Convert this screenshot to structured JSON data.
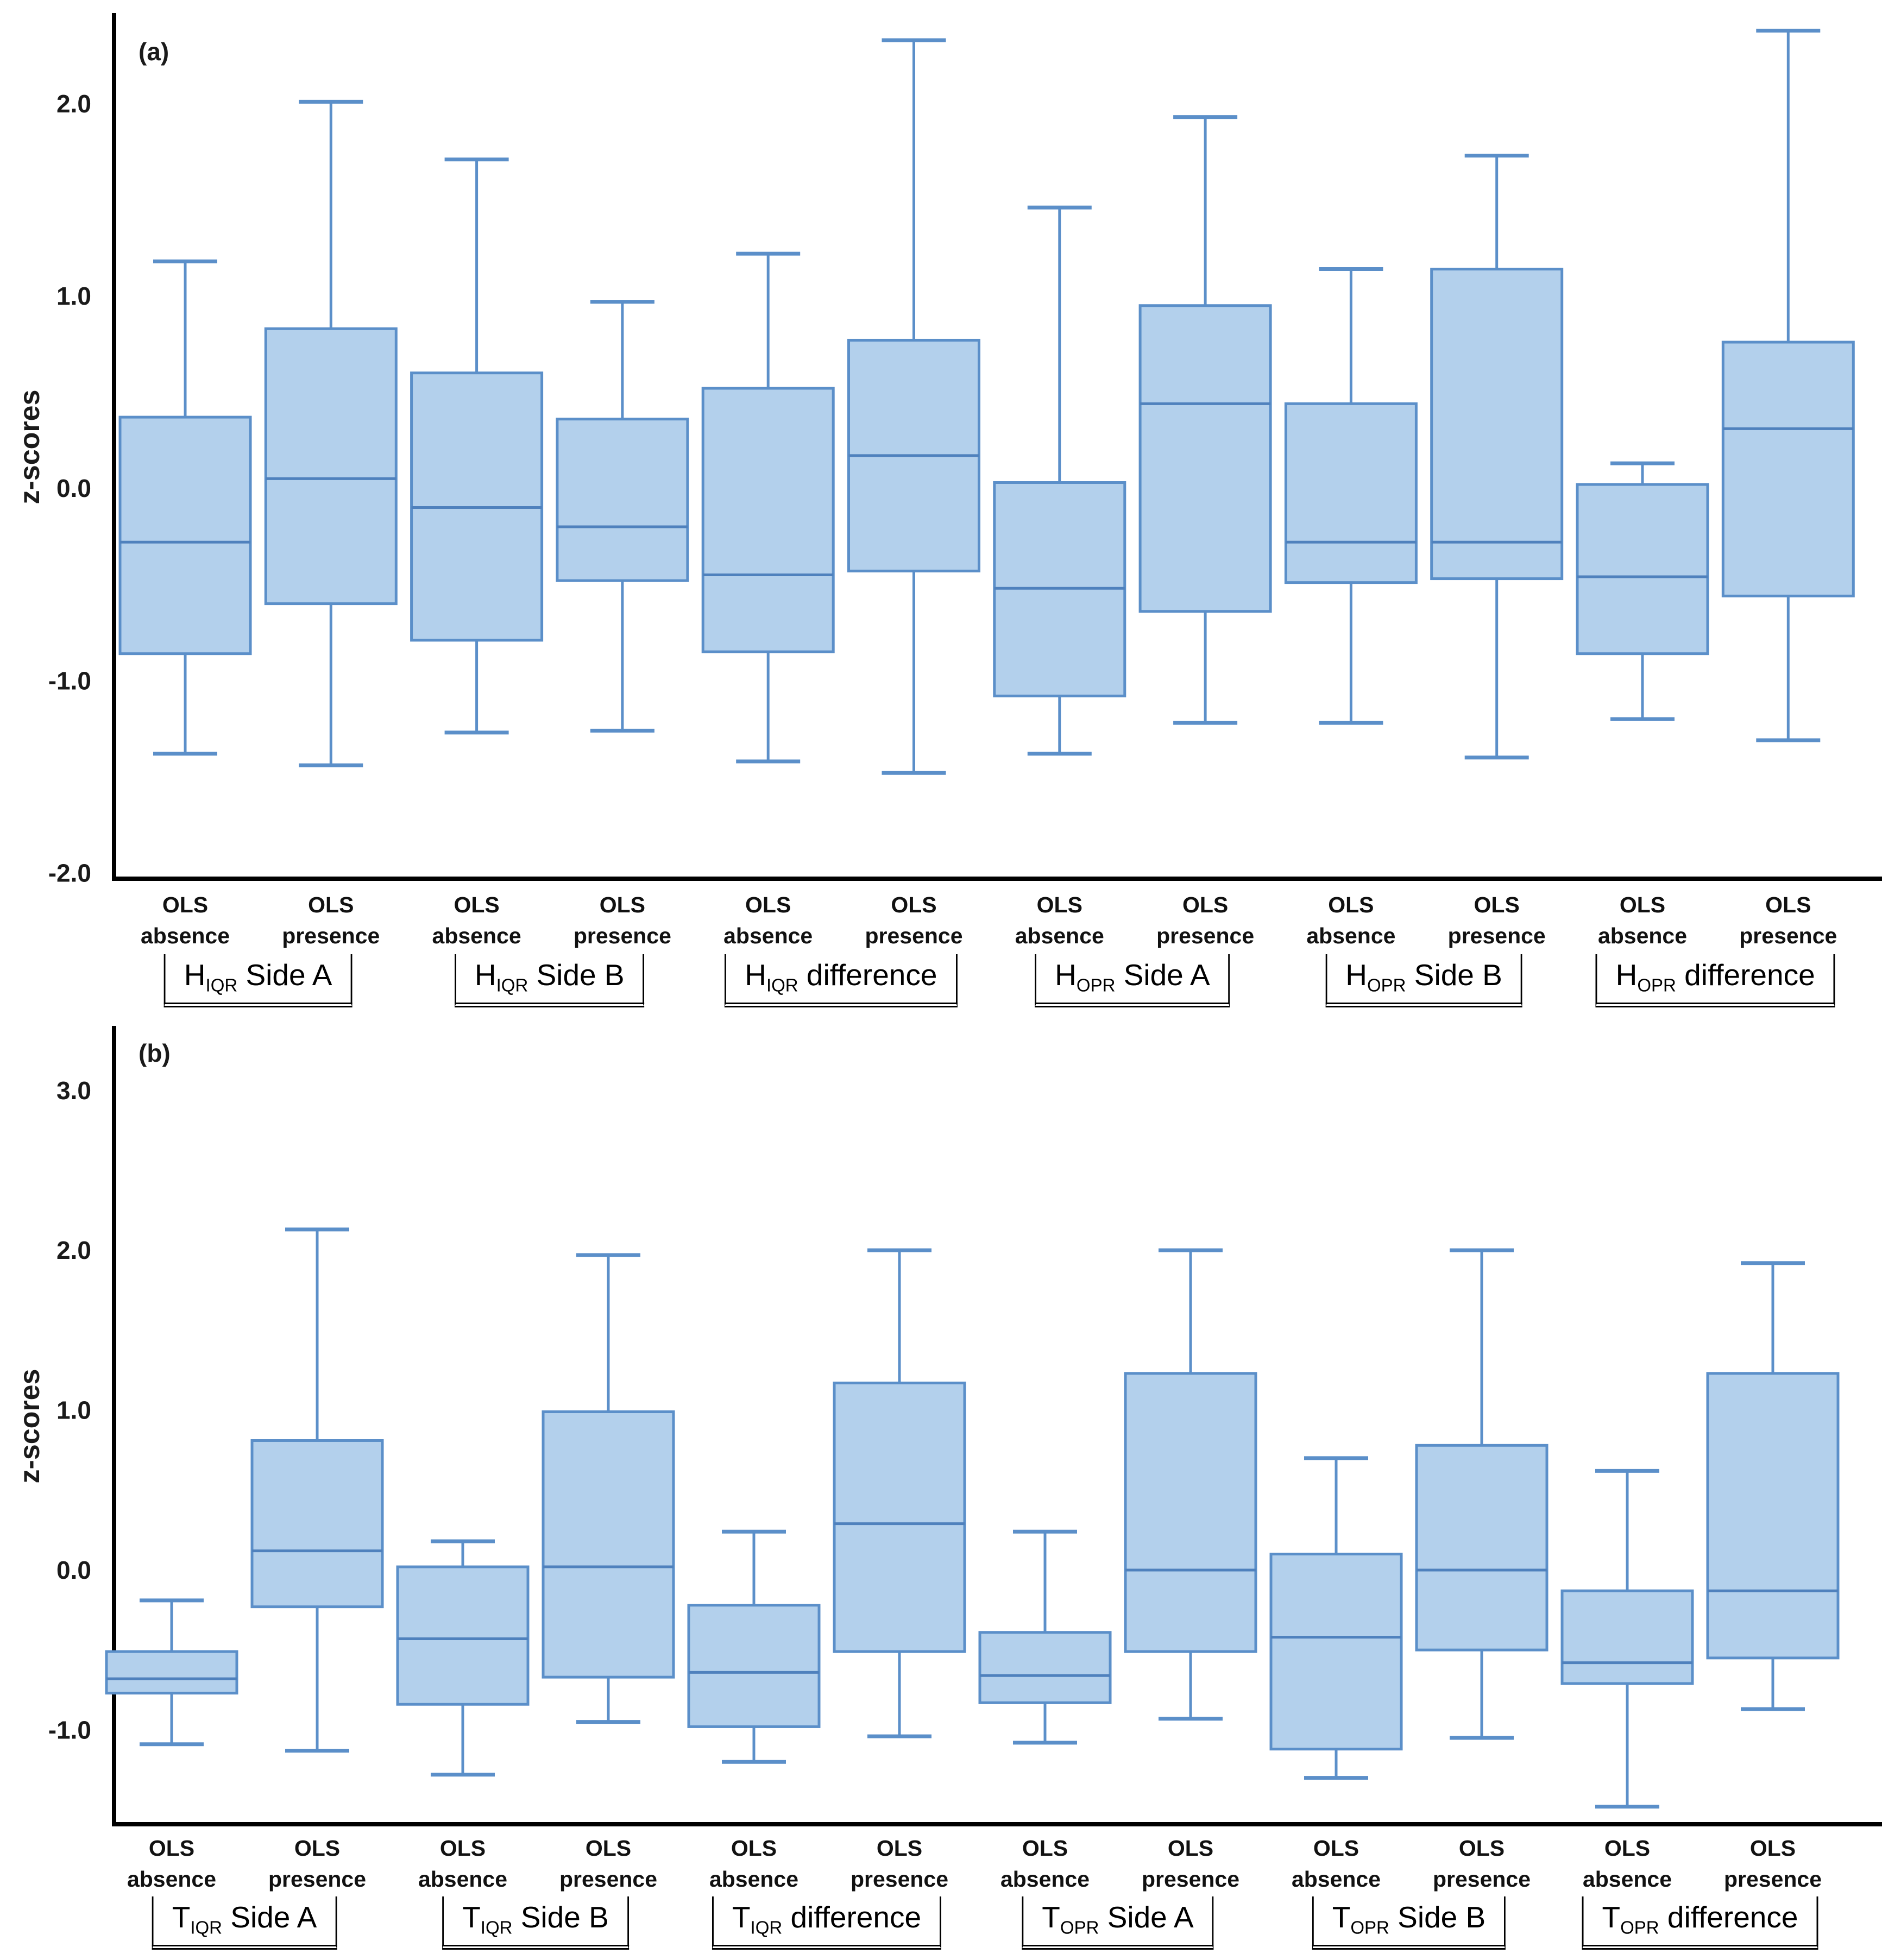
{
  "figure": {
    "background": "#ffffff",
    "box_fill": "#b3d0ec",
    "box_stroke": "#5b8fc9",
    "median_stroke": "#4f81bd",
    "whisker_stroke": "#5b8fc9",
    "axis_color": "#000000",
    "text_color": "#1a1a1a"
  },
  "chart_data": [
    {
      "type": "box",
      "panel_label": "(a)",
      "ylabel": "z-scores",
      "grid": false,
      "legend": null,
      "yticks": [
        {
          "label": "2.0",
          "value": 2.0
        },
        {
          "label": "1.0",
          "value": 1.0
        },
        {
          "label": "0.0",
          "value": 0.0
        },
        {
          "label": "-1.0",
          "value": -1.0
        },
        {
          "label": "-2.0",
          "value": -2.0
        }
      ],
      "ylim": [
        -2.03,
        2.46
      ],
      "groups": [
        {
          "prefix": "H",
          "sub": "IQR",
          "rest": "Side A",
          "name": "H_IQR Side A"
        },
        {
          "prefix": "H",
          "sub": "IQR",
          "rest": "Side B",
          "name": "H_IQR Side B"
        },
        {
          "prefix": "H",
          "sub": "IQR",
          "rest": "difference",
          "name": "H_IQR difference"
        },
        {
          "prefix": "H",
          "sub": "OPR",
          "rest": "Side A",
          "name": "H_OPR Side A"
        },
        {
          "prefix": "H",
          "sub": "OPR",
          "rest": "Side B",
          "name": "H_OPR Side B"
        },
        {
          "prefix": "H",
          "sub": "OPR",
          "rest": "difference",
          "name": "H_OPR difference"
        }
      ],
      "condition_labels": [
        [
          "OLS",
          "absence"
        ],
        [
          "OLS",
          "presence"
        ]
      ],
      "boxes": [
        {
          "group": "H_IQR Side A",
          "condition": "OLS absence",
          "whisker_low": -1.38,
          "q1": -0.86,
          "median": -0.28,
          "q3": 0.37,
          "whisker_high": 1.18
        },
        {
          "group": "H_IQR Side A",
          "condition": "OLS presence",
          "whisker_low": -1.44,
          "q1": -0.6,
          "median": 0.05,
          "q3": 0.83,
          "whisker_high": 2.01
        },
        {
          "group": "H_IQR Side B",
          "condition": "OLS absence",
          "whisker_low": -1.27,
          "q1": -0.79,
          "median": -0.1,
          "q3": 0.6,
          "whisker_high": 1.71
        },
        {
          "group": "H_IQR Side B",
          "condition": "OLS presence",
          "whisker_low": -1.26,
          "q1": -0.48,
          "median": -0.2,
          "q3": 0.36,
          "whisker_high": 0.97
        },
        {
          "group": "H_IQR difference",
          "condition": "OLS absence",
          "whisker_low": -1.42,
          "q1": -0.85,
          "median": -0.45,
          "q3": 0.52,
          "whisker_high": 1.22
        },
        {
          "group": "H_IQR difference",
          "condition": "OLS presence",
          "whisker_low": -1.48,
          "q1": -0.43,
          "median": 0.17,
          "q3": 0.77,
          "whisker_high": 2.33
        },
        {
          "group": "H_OPR Side A",
          "condition": "OLS absence",
          "whisker_low": -1.38,
          "q1": -1.08,
          "median": -0.52,
          "q3": 0.03,
          "whisker_high": 1.46
        },
        {
          "group": "H_OPR Side A",
          "condition": "OLS presence",
          "whisker_low": -1.22,
          "q1": -0.64,
          "median": 0.44,
          "q3": 0.95,
          "whisker_high": 1.93
        },
        {
          "group": "H_OPR Side B",
          "condition": "OLS absence",
          "whisker_low": -1.22,
          "q1": -0.49,
          "median": -0.28,
          "q3": 0.44,
          "whisker_high": 1.14
        },
        {
          "group": "H_OPR Side B",
          "condition": "OLS presence",
          "whisker_low": -1.4,
          "q1": -0.47,
          "median": -0.28,
          "q3": 1.14,
          "whisker_high": 1.73
        },
        {
          "group": "H_OPR difference",
          "condition": "OLS absence",
          "whisker_low": -1.2,
          "q1": -0.86,
          "median": -0.46,
          "q3": 0.02,
          "whisker_high": 0.13
        },
        {
          "group": "H_OPR difference",
          "condition": "OLS presence",
          "whisker_low": -1.31,
          "q1": -0.56,
          "median": 0.31,
          "q3": 0.76,
          "whisker_high": 2.38
        }
      ]
    },
    {
      "type": "box",
      "panel_label": "(b)",
      "ylabel": "z-scores",
      "grid": false,
      "legend": null,
      "yticks": [
        {
          "label": "3.0",
          "value": 3.0
        },
        {
          "label": "2.0",
          "value": 2.0
        },
        {
          "label": "1.0",
          "value": 1.0
        },
        {
          "label": "0.0",
          "value": 0.0
        },
        {
          "label": "-1.0",
          "value": -1.0
        }
      ],
      "ylim": [
        -1.59,
        3.39
      ],
      "groups": [
        {
          "prefix": "T",
          "sub": "IQR",
          "rest": "Side A",
          "name": "T_IQR Side A"
        },
        {
          "prefix": "T",
          "sub": "IQR",
          "rest": "Side B",
          "name": "T_IQR Side B"
        },
        {
          "prefix": "T",
          "sub": "IQR",
          "rest": "difference",
          "name": "T_IQR difference"
        },
        {
          "prefix": "T",
          "sub": "OPR",
          "rest": "Side A",
          "name": "T_OPR Side A"
        },
        {
          "prefix": "T",
          "sub": "OPR",
          "rest": "Side B",
          "name": "T_OPR Side B"
        },
        {
          "prefix": "T",
          "sub": "OPR",
          "rest": "difference",
          "name": "T_OPR difference"
        }
      ],
      "condition_labels": [
        [
          "OLS",
          "absence"
        ],
        [
          "OLS",
          "presence"
        ]
      ],
      "boxes": [
        {
          "group": "T_IQR Side A",
          "condition": "OLS absence",
          "whisker_low": -1.09,
          "q1": -0.77,
          "median": -0.68,
          "q3": -0.51,
          "whisker_high": -0.19
        },
        {
          "group": "T_IQR Side A",
          "condition": "OLS presence",
          "whisker_low": -1.13,
          "q1": -0.23,
          "median": 0.12,
          "q3": 0.81,
          "whisker_high": 2.13
        },
        {
          "group": "T_IQR Side B",
          "condition": "OLS absence",
          "whisker_low": -1.28,
          "q1": -0.84,
          "median": -0.43,
          "q3": 0.02,
          "whisker_high": 0.18
        },
        {
          "group": "T_IQR Side B",
          "condition": "OLS presence",
          "whisker_low": -0.95,
          "q1": -0.67,
          "median": 0.02,
          "q3": 0.99,
          "whisker_high": 1.97
        },
        {
          "group": "T_IQR difference",
          "condition": "OLS absence",
          "whisker_low": -1.2,
          "q1": -0.98,
          "median": -0.64,
          "q3": -0.22,
          "whisker_high": 0.24
        },
        {
          "group": "T_IQR difference",
          "condition": "OLS presence",
          "whisker_low": -1.04,
          "q1": -0.51,
          "median": 0.29,
          "q3": 1.17,
          "whisker_high": 2.0
        },
        {
          "group": "T_OPR Side A",
          "condition": "OLS absence",
          "whisker_low": -1.08,
          "q1": -0.83,
          "median": -0.66,
          "q3": -0.39,
          "whisker_high": 0.24
        },
        {
          "group": "T_OPR Side A",
          "condition": "OLS presence",
          "whisker_low": -0.93,
          "q1": -0.51,
          "median": 0.0,
          "q3": 1.23,
          "whisker_high": 2.0
        },
        {
          "group": "T_OPR Side B",
          "condition": "OLS absence",
          "whisker_low": -1.3,
          "q1": -1.12,
          "median": -0.42,
          "q3": 0.1,
          "whisker_high": 0.7
        },
        {
          "group": "T_OPR Side B",
          "condition": "OLS presence",
          "whisker_low": -1.05,
          "q1": -0.5,
          "median": 0.0,
          "q3": 0.78,
          "whisker_high": 2.0
        },
        {
          "group": "T_OPR difference",
          "condition": "OLS absence",
          "whisker_low": -1.48,
          "q1": -0.71,
          "median": -0.58,
          "q3": -0.13,
          "whisker_high": 0.62
        },
        {
          "group": "T_OPR difference",
          "condition": "OLS presence",
          "whisker_low": -0.87,
          "q1": -0.55,
          "median": -0.13,
          "q3": 1.23,
          "whisker_high": 1.92
        }
      ]
    }
  ]
}
